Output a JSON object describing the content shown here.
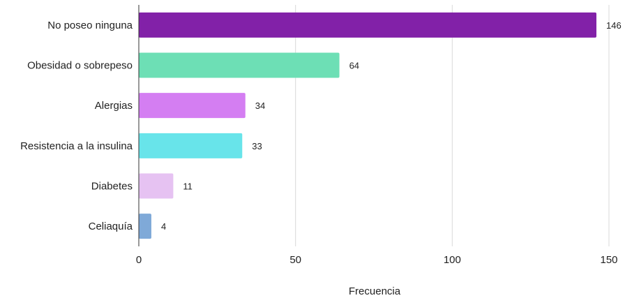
{
  "chart_data": {
    "type": "bar",
    "orientation": "horizontal",
    "categories": [
      "No poseo ninguna",
      "Obesidad o sobrepeso",
      "Alergias",
      "Resistencia a la insulina",
      "Diabetes",
      "Celiaquía"
    ],
    "values": [
      146,
      64,
      34,
      33,
      11,
      4
    ],
    "data_labels": [
      "146",
      "64",
      "34",
      "33",
      "11",
      "4"
    ],
    "colors": [
      "#8221a8",
      "#6ddfb5",
      "#d47ef2",
      "#68e4ea",
      "#e6c2f2",
      "#7fa9d8"
    ],
    "xlabel": "Frecuencia",
    "ylabel": "",
    "xlim": [
      0,
      150
    ],
    "xticks": [
      "0",
      "50",
      "100",
      "150"
    ],
    "grid": true
  }
}
